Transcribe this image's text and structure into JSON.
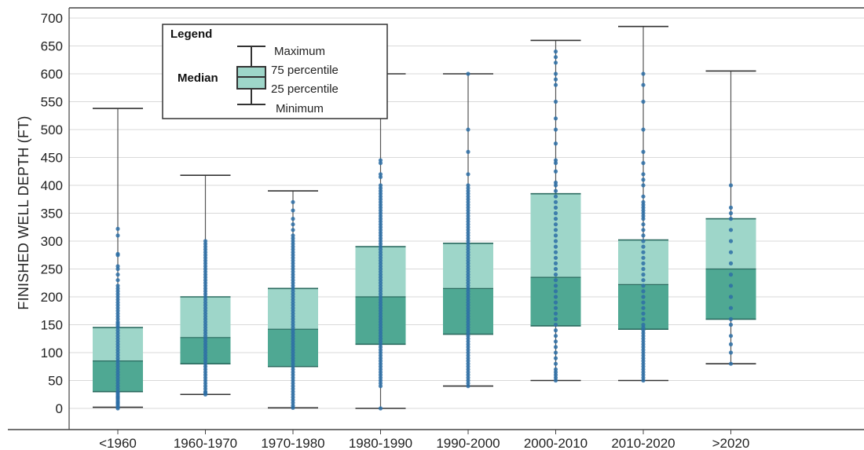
{
  "chart_data": {
    "type": "box",
    "title": "",
    "xlabel": "",
    "ylabel": "FINISHED WELL DEPTH (FT)",
    "ylim": [
      -40,
      710
    ],
    "yticks": [
      0,
      50,
      100,
      150,
      200,
      250,
      300,
      350,
      400,
      450,
      500,
      550,
      600,
      650,
      700
    ],
    "grid": true,
    "categories": [
      "<1960",
      "1960-1970",
      "1970-1980",
      "1980-1990",
      "1990-2000",
      "2000-2010",
      "2010-2020",
      ">2020"
    ],
    "boxes": [
      {
        "min": 2,
        "q1": 30,
        "median": 85,
        "q3": 145,
        "max": 538
      },
      {
        "min": 25,
        "q1": 80,
        "median": 127,
        "q3": 200,
        "max": 418
      },
      {
        "min": 1,
        "q1": 75,
        "median": 142,
        "q3": 215,
        "max": 390
      },
      {
        "min": 0,
        "q1": 115,
        "median": 200,
        "q3": 290,
        "max": 600
      },
      {
        "min": 40,
        "q1": 133,
        "median": 215,
        "q3": 296,
        "max": 600
      },
      {
        "min": 50,
        "q1": 148,
        "median": 235,
        "q3": 385,
        "max": 660
      },
      {
        "min": 50,
        "q1": 142,
        "median": 222,
        "q3": 302,
        "max": 685
      },
      {
        "min": 80,
        "q1": 160,
        "median": 250,
        "q3": 340,
        "max": 605
      }
    ],
    "points": [
      [
        0,
        2,
        5,
        8,
        10,
        12,
        15,
        18,
        20,
        22,
        25,
        28,
        30,
        35,
        40,
        45,
        50,
        55,
        60,
        65,
        70,
        75,
        80,
        85,
        90,
        95,
        100,
        105,
        110,
        115,
        120,
        125,
        130,
        135,
        140,
        145,
        148,
        152,
        155,
        160,
        165,
        170,
        175,
        180,
        185,
        190,
        195,
        200,
        205,
        210,
        215,
        220,
        230,
        240,
        250,
        255,
        275,
        277,
        310,
        322
      ],
      [
        25,
        28,
        30,
        35,
        40,
        45,
        50,
        55,
        60,
        65,
        70,
        75,
        80,
        85,
        90,
        95,
        100,
        105,
        110,
        115,
        120,
        125,
        130,
        135,
        140,
        145,
        150,
        155,
        160,
        165,
        170,
        175,
        180,
        185,
        190,
        195,
        200,
        205,
        210,
        215,
        220,
        225,
        230,
        235,
        240,
        245,
        250,
        255,
        260,
        265,
        270,
        275,
        280,
        285,
        290,
        295,
        300
      ],
      [
        1,
        5,
        10,
        15,
        20,
        25,
        30,
        35,
        40,
        45,
        50,
        55,
        60,
        65,
        70,
        75,
        80,
        85,
        90,
        95,
        100,
        105,
        110,
        115,
        120,
        125,
        130,
        135,
        140,
        145,
        150,
        155,
        160,
        165,
        170,
        175,
        180,
        185,
        190,
        195,
        200,
        205,
        210,
        215,
        220,
        225,
        230,
        235,
        240,
        245,
        250,
        255,
        260,
        265,
        270,
        275,
        280,
        285,
        290,
        295,
        300,
        305,
        310,
        320,
        330,
        340,
        355,
        370
      ],
      [
        0,
        40,
        45,
        50,
        55,
        60,
        65,
        70,
        75,
        80,
        85,
        90,
        95,
        100,
        105,
        110,
        115,
        120,
        125,
        130,
        135,
        140,
        145,
        150,
        155,
        160,
        165,
        170,
        175,
        180,
        185,
        190,
        195,
        200,
        205,
        210,
        215,
        220,
        225,
        230,
        235,
        240,
        245,
        250,
        255,
        260,
        265,
        270,
        275,
        280,
        285,
        290,
        295,
        300,
        305,
        310,
        315,
        320,
        325,
        330,
        335,
        340,
        345,
        350,
        355,
        360,
        365,
        370,
        375,
        380,
        385,
        390,
        395,
        400,
        415,
        420,
        440,
        445,
        540,
        600
      ],
      [
        40,
        45,
        50,
        55,
        60,
        65,
        70,
        75,
        80,
        85,
        90,
        95,
        100,
        105,
        110,
        115,
        120,
        125,
        130,
        135,
        140,
        145,
        150,
        155,
        160,
        165,
        170,
        175,
        180,
        185,
        190,
        195,
        200,
        205,
        210,
        215,
        220,
        225,
        230,
        235,
        240,
        245,
        250,
        255,
        260,
        265,
        270,
        275,
        280,
        285,
        290,
        295,
        300,
        305,
        310,
        315,
        320,
        325,
        330,
        335,
        340,
        345,
        350,
        355,
        360,
        365,
        370,
        375,
        380,
        385,
        390,
        395,
        400,
        420,
        460,
        500,
        600
      ],
      [
        50,
        55,
        60,
        65,
        70,
        80,
        90,
        100,
        110,
        120,
        130,
        140,
        150,
        160,
        170,
        180,
        190,
        200,
        210,
        220,
        230,
        240,
        250,
        260,
        270,
        280,
        290,
        300,
        310,
        320,
        330,
        340,
        350,
        360,
        370,
        380,
        390,
        400,
        405,
        425,
        440,
        445,
        475,
        500,
        520,
        550,
        580,
        590,
        600,
        620,
        630,
        640
      ],
      [
        50,
        55,
        60,
        65,
        70,
        75,
        80,
        85,
        90,
        95,
        100,
        105,
        110,
        115,
        120,
        125,
        130,
        135,
        140,
        145,
        150,
        160,
        170,
        180,
        190,
        200,
        210,
        220,
        230,
        240,
        250,
        260,
        270,
        280,
        290,
        300,
        310,
        320,
        330,
        340,
        345,
        350,
        355,
        360,
        365,
        370,
        380,
        400,
        410,
        420,
        440,
        460,
        500,
        550,
        580,
        600
      ],
      [
        80,
        100,
        115,
        130,
        150,
        160,
        180,
        200,
        220,
        240,
        260,
        280,
        300,
        320,
        340,
        350,
        360,
        400
      ]
    ],
    "colors": {
      "upper_box": "#9ed6c9",
      "lower_box": "#4fa893",
      "box_edge": "#2c6b60",
      "whisker": "#555555",
      "points": "#2d6ea6",
      "grid": "#d9d9d9"
    },
    "legend": {
      "title": "Legend",
      "maximum": "Maximum",
      "q3": "75 percentile",
      "q1": "25 percentile",
      "minimum": "Minimum",
      "median": "Median",
      "placement": "top-left"
    }
  }
}
